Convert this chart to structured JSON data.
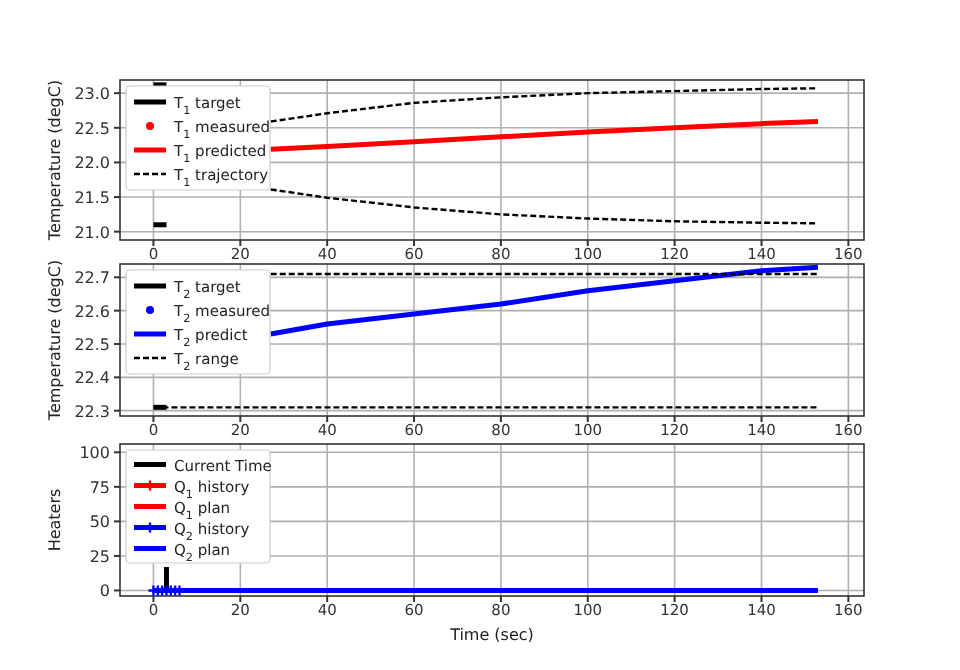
{
  "chart_data": [
    {
      "type": "line",
      "ylabel": "Temperature (degC)",
      "xlim": [
        -7.7,
        163.6
      ],
      "ylim": [
        20.88,
        23.19
      ],
      "xticks": [
        0,
        20,
        40,
        60,
        80,
        100,
        120,
        140,
        160
      ],
      "yticks": [
        {
          "value": 21,
          "label": "21.0"
        },
        21.5,
        {
          "value": 22,
          "label": "22.0"
        },
        22.5,
        {
          "value": 23,
          "label": "23.0"
        }
      ],
      "grid": true,
      "legend": "top left",
      "series": [
        {
          "name": "T$_{1}$ target",
          "type": "line",
          "color": "#000000",
          "line_style": "solid",
          "x": [
            0,
            3
          ],
          "values": [
            23.12,
            23.12
          ]
        },
        {
          "type": "line",
          "color": "#000000",
          "line_style": "solid",
          "x": [
            0,
            3
          ],
          "values": [
            21.1,
            21.1
          ]
        },
        {
          "name": "T$_{1}$ measured",
          "type": "scatter",
          "color": "#ff0000",
          "marker": "circle"
        },
        {
          "name": "T$_{1}$ predicted",
          "type": "line",
          "color": "#ff0000",
          "line_style": "solid",
          "x": [
            27,
            40,
            60,
            80,
            100,
            120,
            140,
            153
          ],
          "values": [
            22.19,
            22.23,
            22.3,
            22.37,
            22.44,
            22.5,
            22.56,
            22.59
          ]
        },
        {
          "name": "T$_{1}$ trajectory",
          "type": "line",
          "color": "#000000",
          "line_style": "dashed",
          "x": [
            27,
            40,
            60,
            80,
            100,
            120,
            140,
            153
          ],
          "values": [
            22.59,
            22.71,
            22.86,
            22.94,
            23.0,
            23.03,
            23.06,
            23.07
          ]
        },
        {
          "type": "line",
          "color": "#000000",
          "line_style": "dashed",
          "x": [
            27,
            40,
            60,
            80,
            100,
            120,
            140,
            153
          ],
          "values": [
            21.61,
            21.49,
            21.35,
            21.25,
            21.19,
            21.15,
            21.13,
            21.12
          ]
        }
      ]
    },
    {
      "type": "line",
      "ylabel": "Temperature (degC)",
      "xlim": [
        -7.7,
        163.6
      ],
      "ylim": [
        22.284,
        22.74
      ],
      "xticks": [
        0,
        20,
        40,
        60,
        80,
        100,
        120,
        140,
        160
      ],
      "yticks": [
        22.3,
        22.4,
        22.5,
        22.6,
        22.7
      ],
      "grid": true,
      "legend": "top left",
      "series": [
        {
          "name": "T$_{2}$ target",
          "type": "line",
          "color": "#000000",
          "line_style": "solid",
          "x": [
            0,
            3
          ],
          "values": [
            22.31,
            22.31
          ]
        },
        {
          "name": "T$_{2}$ measured",
          "type": "scatter",
          "color": "#0000ff",
          "marker": "circle"
        },
        {
          "name": "T$_{2}$ predict",
          "type": "line",
          "color": "#0000ff",
          "line_style": "solid",
          "x": [
            27,
            40,
            60,
            80,
            100,
            120,
            140,
            153
          ],
          "values": [
            22.53,
            22.56,
            22.59,
            22.62,
            22.66,
            22.69,
            22.72,
            22.73
          ]
        },
        {
          "name": "T$_{2}$ range",
          "type": "line",
          "color": "#000000",
          "line_style": "dashed",
          "x": [
            27,
            153
          ],
          "values": [
            22.71,
            22.71
          ]
        },
        {
          "type": "line",
          "color": "#000000",
          "line_style": "dashed",
          "x": [
            0,
            153
          ],
          "values": [
            22.31,
            22.31
          ]
        }
      ]
    },
    {
      "type": "line",
      "xlabel": "Time (sec)",
      "ylabel": "Heaters",
      "xlim": [
        -7.7,
        163.6
      ],
      "ylim": [
        -4,
        106
      ],
      "xticks": [
        0,
        20,
        40,
        60,
        80,
        100,
        120,
        140,
        160
      ],
      "yticks": [
        0,
        25,
        50,
        75,
        100
      ],
      "grid": true,
      "legend": "top left",
      "series": [
        {
          "name": "Current Time",
          "type": "line",
          "color": "#000000",
          "line_style": "solid",
          "x": [
            3,
            3
          ],
          "values": [
            0,
            17
          ]
        },
        {
          "name": "Q$_{1}$ history",
          "type": "line",
          "color": "#ff0000",
          "line_style": "solid",
          "marker": "cross"
        },
        {
          "name": "Q$_{1}$ plan",
          "type": "line",
          "color": "#ff0000",
          "line_style": "solid"
        },
        {
          "name": "Q$_{2}$ history",
          "type": "line",
          "color": "#0000ff",
          "line_style": "solid",
          "marker": "cross",
          "x": [
            0,
            1,
            2,
            3,
            4,
            5,
            6
          ],
          "values": [
            0,
            0,
            0,
            0,
            0,
            0,
            0
          ]
        },
        {
          "name": "Q$_{2}$ plan",
          "type": "line",
          "color": "#0000ff",
          "line_style": "solid",
          "x": [
            6,
            153
          ],
          "values": [
            0,
            0
          ]
        }
      ]
    }
  ]
}
